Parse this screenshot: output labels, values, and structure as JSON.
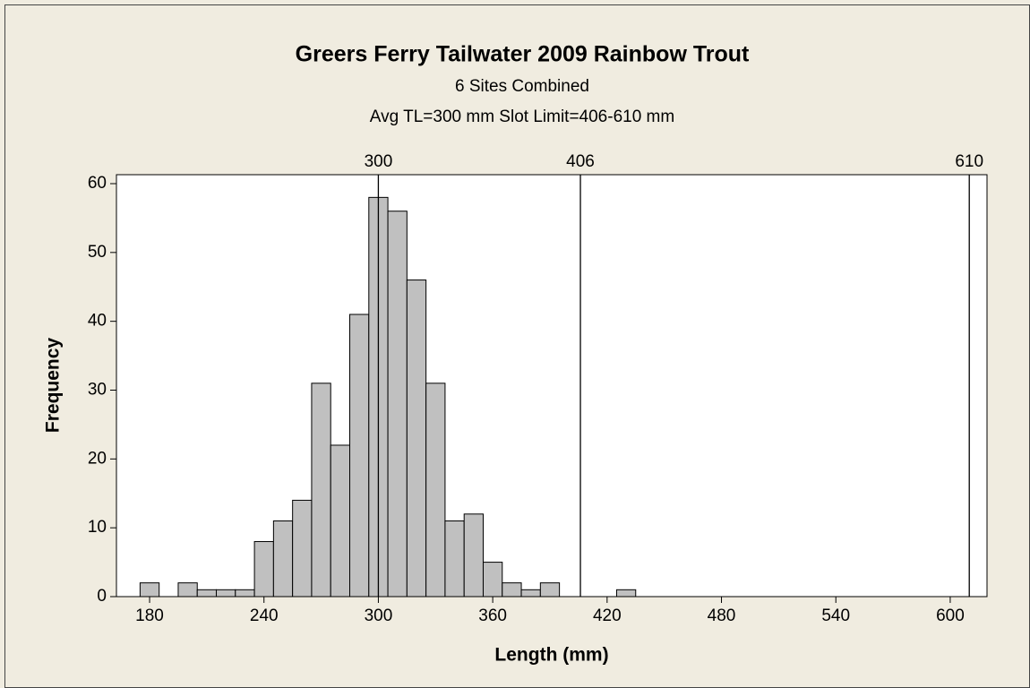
{
  "chart_data": {
    "type": "histogram",
    "title": "Greers Ferry Tailwater 2009 Rainbow Trout",
    "subtitle": [
      "6 Sites Combined",
      "Avg TL=300 mm  Slot Limit=406-610 mm"
    ],
    "x_label": "Length (mm)",
    "y_label": "Frequency",
    "bins": [
      165,
      175,
      185,
      195,
      205,
      215,
      225,
      235,
      245,
      255,
      265,
      275,
      285,
      295,
      305,
      315,
      325,
      335,
      345,
      355,
      365,
      375,
      385,
      395,
      405,
      415,
      425,
      435
    ],
    "values": [
      0,
      2,
      0,
      2,
      1,
      1,
      1,
      8,
      11,
      14,
      31,
      22,
      41,
      58,
      56,
      46,
      31,
      11,
      12,
      5,
      2,
      1,
      2,
      0,
      0,
      0,
      1
    ],
    "color": "#c0c0c0",
    "reference_lines": [
      300,
      406,
      610
    ],
    "xlim": [
      162.6,
      619.3
    ],
    "xticks": [
      180,
      240,
      300,
      360,
      420,
      480,
      540,
      600
    ],
    "ylim": [
      0,
      61.3
    ],
    "yticks": [
      0,
      10,
      20,
      30,
      40,
      50,
      60
    ],
    "grid": false
  }
}
